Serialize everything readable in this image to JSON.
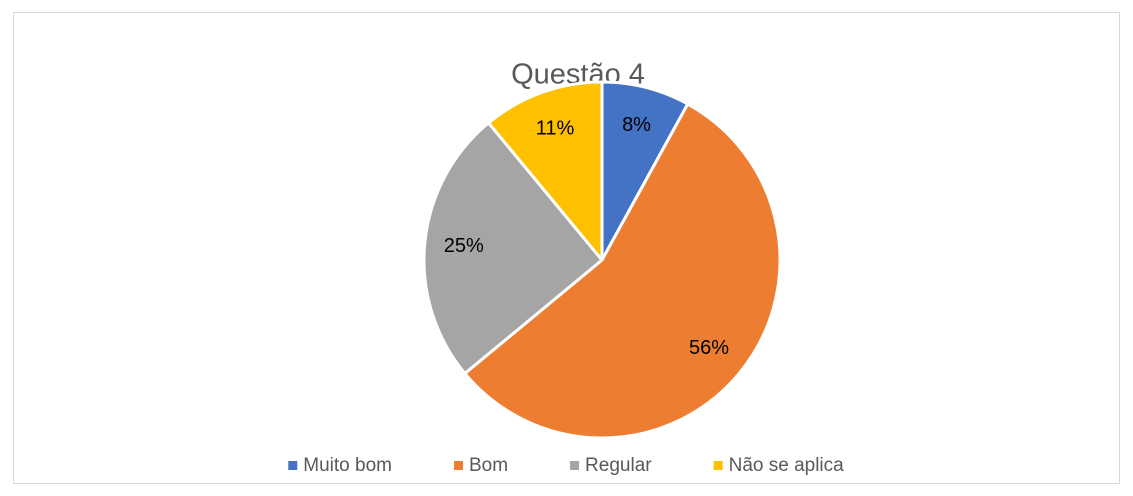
{
  "chart_data": {
    "type": "pie",
    "title": "Questão 4",
    "categories": [
      "Muito bom",
      "Bom",
      "Regular",
      "Não se aplica"
    ],
    "values": [
      8,
      56,
      25,
      11
    ],
    "value_labels": [
      "8%",
      "56%",
      "25%",
      "11%"
    ],
    "colors": [
      "#4472c4",
      "#ed7d31",
      "#a5a5a5",
      "#ffc000"
    ],
    "legend": "bottom"
  }
}
